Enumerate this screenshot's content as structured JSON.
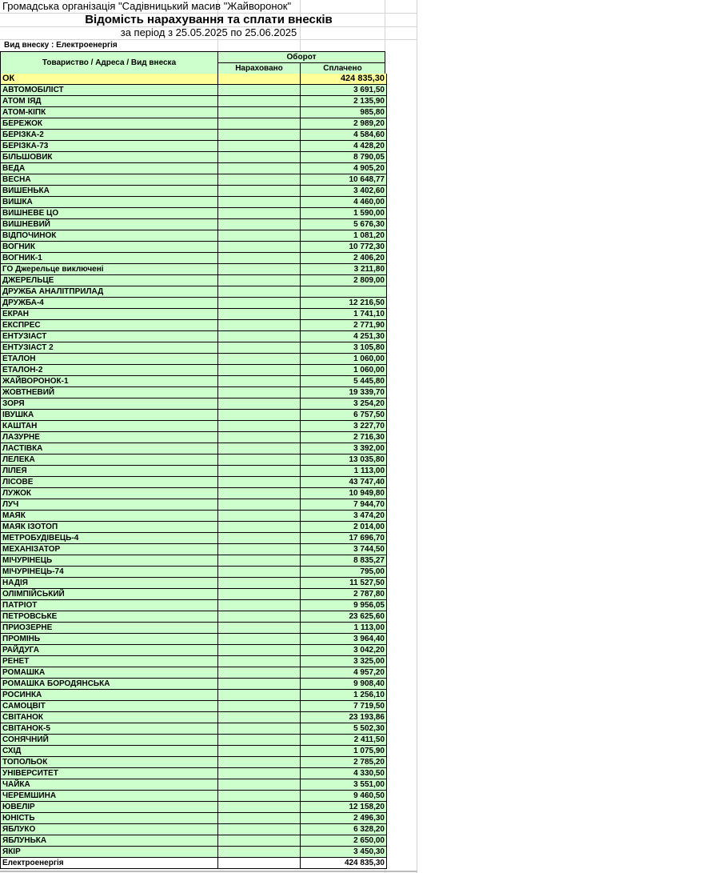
{
  "header": {
    "organization": "Громадська організація \"Садівницький масив \"Жайворонок\"",
    "title": "Відомість нарахування та сплати внесків",
    "period": "за період з 25.05.2025 по 25.06.2025",
    "contribution_type": "Вид внеску : Електроенергія"
  },
  "table": {
    "columns": {
      "name": "Товариство / Адреса / Вид внеска",
      "turnover": "Оборот",
      "accrued": "Нараховано",
      "paid": "Сплачено"
    },
    "group_row": {
      "name": "ОК",
      "accrued": "",
      "paid": "424 835,30"
    },
    "rows": [
      {
        "name": "АВТОМОБІЛІСТ",
        "accrued": "",
        "paid": "3 691,50"
      },
      {
        "name": "АТОМ ІЯД",
        "accrued": "",
        "paid": "2 135,90"
      },
      {
        "name": "АТОМ-КІПК",
        "accrued": "",
        "paid": "985,80"
      },
      {
        "name": "БЕРЕЖОК",
        "accrued": "",
        "paid": "2 989,20"
      },
      {
        "name": "БЕРІЗКА-2",
        "accrued": "",
        "paid": "4 584,60"
      },
      {
        "name": "БЕРІЗКА-73",
        "accrued": "",
        "paid": "4 428,20"
      },
      {
        "name": "БІЛЬШОВИК",
        "accrued": "",
        "paid": "8 790,05"
      },
      {
        "name": "ВЕДА",
        "accrued": "",
        "paid": "4 905,20"
      },
      {
        "name": "ВЕСНА",
        "accrued": "",
        "paid": "10 648,77"
      },
      {
        "name": "ВИШЕНЬКА",
        "accrued": "",
        "paid": "3 402,60"
      },
      {
        "name": "ВИШКА",
        "accrued": "",
        "paid": "4 460,00"
      },
      {
        "name": "ВИШНЕВЕ ЦО",
        "accrued": "",
        "paid": "1 590,00"
      },
      {
        "name": "ВИШНЕВИЙ",
        "accrued": "",
        "paid": "5 676,30"
      },
      {
        "name": "ВІДПОЧИНОК",
        "accrued": "",
        "paid": "1 081,20"
      },
      {
        "name": "ВОГНИК",
        "accrued": "",
        "paid": "10 772,30"
      },
      {
        "name": "ВОГНИК-1",
        "accrued": "",
        "paid": "2 406,20"
      },
      {
        "name": "ГО Джерельце виключені",
        "accrued": "",
        "paid": "3 211,80"
      },
      {
        "name": "ДЖЕРЕЛЬЦЕ",
        "accrued": "",
        "paid": "2 809,00"
      },
      {
        "name": "ДРУЖБА АНАЛІТПРИЛАД",
        "accrued": "",
        "paid": ""
      },
      {
        "name": "ДРУЖБА-4",
        "accrued": "",
        "paid": "12 216,50"
      },
      {
        "name": "ЕКРАН",
        "accrued": "",
        "paid": "1 741,10"
      },
      {
        "name": "ЕКСПРЕС",
        "accrued": "",
        "paid": "2 771,90"
      },
      {
        "name": "ЕНТУЗІАСТ",
        "accrued": "",
        "paid": "4 251,30"
      },
      {
        "name": "ЕНТУЗІАСТ 2",
        "accrued": "",
        "paid": "3 105,80"
      },
      {
        "name": "ЕТАЛОН",
        "accrued": "",
        "paid": "1 060,00"
      },
      {
        "name": "ЕТАЛОН-2",
        "accrued": "",
        "paid": "1 060,00"
      },
      {
        "name": "ЖАЙВОРОНОК-1",
        "accrued": "",
        "paid": "5 445,80"
      },
      {
        "name": "ЖОВТНЕВИЙ",
        "accrued": "",
        "paid": "19 339,70"
      },
      {
        "name": "ЗОРЯ",
        "accrued": "",
        "paid": "3 254,20"
      },
      {
        "name": "ІВУШКА",
        "accrued": "",
        "paid": "6 757,50"
      },
      {
        "name": "КАШТАН",
        "accrued": "",
        "paid": "3 227,70"
      },
      {
        "name": "ЛАЗУРНЕ",
        "accrued": "",
        "paid": "2 716,30"
      },
      {
        "name": "ЛАСТІВКА",
        "accrued": "",
        "paid": "3 392,00"
      },
      {
        "name": "ЛЕЛЕКА",
        "accrued": "",
        "paid": "13 035,80"
      },
      {
        "name": "ЛІЛЕЯ",
        "accrued": "",
        "paid": "1 113,00"
      },
      {
        "name": "ЛІСОВЕ",
        "accrued": "",
        "paid": "43 747,40"
      },
      {
        "name": "ЛУЖОК",
        "accrued": "",
        "paid": "10 949,80"
      },
      {
        "name": "ЛУЧ",
        "accrued": "",
        "paid": "7 944,70"
      },
      {
        "name": "МАЯК",
        "accrued": "",
        "paid": "3 474,20"
      },
      {
        "name": "МАЯК ІЗОТОП",
        "accrued": "",
        "paid": "2 014,00"
      },
      {
        "name": "МЕТРОБУДІВЕЦЬ-4",
        "accrued": "",
        "paid": "17 696,70"
      },
      {
        "name": "МЕХАНІЗАТОР",
        "accrued": "",
        "paid": "3 744,50"
      },
      {
        "name": "МІЧУРІНЕЦЬ",
        "accrued": "",
        "paid": "8 835,27"
      },
      {
        "name": "МІЧУРІНЕЦЬ-74",
        "accrued": "",
        "paid": "795,00"
      },
      {
        "name": "НАДІЯ",
        "accrued": "",
        "paid": "11 527,50"
      },
      {
        "name": "ОЛІМПІЙСЬКИЙ",
        "accrued": "",
        "paid": "2 787,80"
      },
      {
        "name": "ПАТРІОТ",
        "accrued": "",
        "paid": "9 956,05"
      },
      {
        "name": "ПЕТРОВСЬКЕ",
        "accrued": "",
        "paid": "23 625,60"
      },
      {
        "name": "ПРИОЗЕРНЕ",
        "accrued": "",
        "paid": "1 113,00"
      },
      {
        "name": "ПРОМІНЬ",
        "accrued": "",
        "paid": "3 964,40"
      },
      {
        "name": "РАЙДУГА",
        "accrued": "",
        "paid": "3 042,20"
      },
      {
        "name": "РЕНЕТ",
        "accrued": "",
        "paid": "3 325,00"
      },
      {
        "name": "РОМАШКА",
        "accrued": "",
        "paid": "4 957,20"
      },
      {
        "name": "РОМАШКА БОРОДЯНСЬКА",
        "accrued": "",
        "paid": "9 908,40"
      },
      {
        "name": "РОСИНКА",
        "accrued": "",
        "paid": "1 256,10"
      },
      {
        "name": "САМОЦВІТ",
        "accrued": "",
        "paid": "7 719,50"
      },
      {
        "name": "СВІТАНОК",
        "accrued": "",
        "paid": "23 193,86"
      },
      {
        "name": "СВІТАНОК-5",
        "accrued": "",
        "paid": "5 502,30"
      },
      {
        "name": "СОНЯЧНИЙ",
        "accrued": "",
        "paid": "2 411,50"
      },
      {
        "name": "СХІД",
        "accrued": "",
        "paid": "1 075,90"
      },
      {
        "name": "ТОПОЛЬОК",
        "accrued": "",
        "paid": "2 785,20"
      },
      {
        "name": "УНІВЕРСИТЕТ",
        "accrued": "",
        "paid": "4 330,50"
      },
      {
        "name": "ЧАЙКА",
        "accrued": "",
        "paid": "3 551,00"
      },
      {
        "name": "ЧЕРЕМШИНА",
        "accrued": "",
        "paid": "9 460,50"
      },
      {
        "name": "ЮВЕЛІР",
        "accrued": "",
        "paid": "12 158,20"
      },
      {
        "name": "ЮНІСТЬ",
        "accrued": "",
        "paid": "2 496,30"
      },
      {
        "name": "ЯБЛУКО",
        "accrued": "",
        "paid": "6 328,20"
      },
      {
        "name": "ЯБЛУНЬКА",
        "accrued": "",
        "paid": "2 650,00"
      },
      {
        "name": "ЯКІР",
        "accrued": "",
        "paid": "3 450,30"
      }
    ],
    "total_row": {
      "name": "Електроенергія",
      "accrued": "",
      "paid": "424 835,30"
    }
  }
}
